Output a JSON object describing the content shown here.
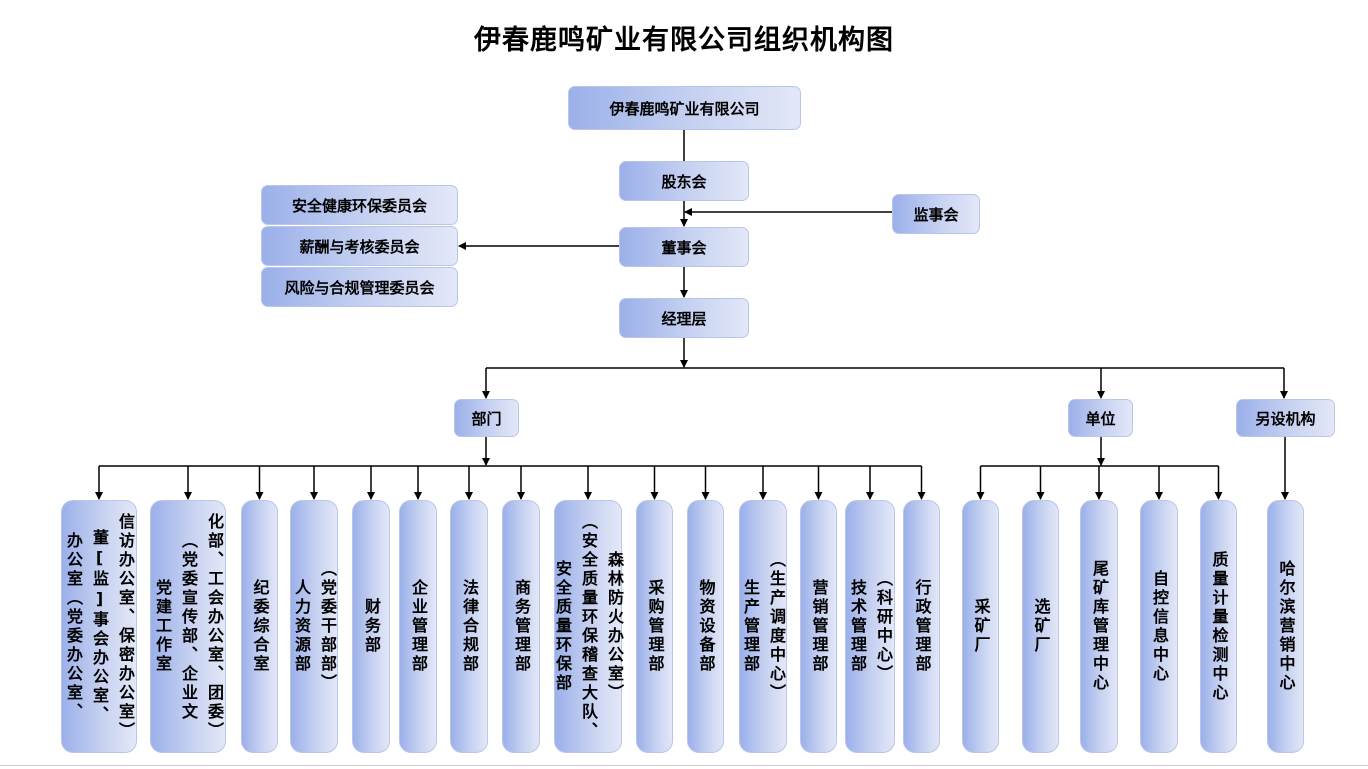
{
  "title": "伊春鹿鸣矿业有限公司组织机构图",
  "company": "伊春鹿鸣矿业有限公司",
  "shareholders": "股东会",
  "supervisors": "监事会",
  "board": "董事会",
  "management": "经理层",
  "committees": [
    "安全健康环保委员会",
    "薪酬与考核委员会",
    "风险与合规管理委员会"
  ],
  "groups": {
    "departments": "部门",
    "units": "单位",
    "other": "另设机构"
  },
  "departments": [
    {
      "columns": [
        "办公室（党委办公室、",
        "董[监]事会办公室、",
        "信访办公室、保密办公室）"
      ]
    },
    {
      "columns": [
        "党建工作室",
        "（党委宣传部、企业文",
        "化部、工会办公室、团委）"
      ]
    },
    {
      "columns": [
        "纪委综合室"
      ]
    },
    {
      "columns": [
        "人力资源部",
        "（党委干部部）"
      ]
    },
    {
      "columns": [
        "财务部"
      ]
    },
    {
      "columns": [
        "企业管理部"
      ]
    },
    {
      "columns": [
        "法律合规部"
      ]
    },
    {
      "columns": [
        "商务管理部"
      ]
    },
    {
      "columns": [
        "安全质量环保部",
        "（安全质量环保稽查大队、",
        "森林防火办公室）"
      ]
    },
    {
      "columns": [
        "采购管理部"
      ]
    },
    {
      "columns": [
        "物资设备部"
      ]
    },
    {
      "columns": [
        "生产管理部",
        "（生产调度中心）"
      ]
    },
    {
      "columns": [
        "营销管理部"
      ]
    },
    {
      "columns": [
        "技术管理部",
        "（科研中心）"
      ]
    },
    {
      "columns": [
        "行政管理部"
      ]
    }
  ],
  "units": [
    {
      "columns": [
        "采矿厂"
      ]
    },
    {
      "columns": [
        "选矿厂"
      ]
    },
    {
      "columns": [
        "尾矿库管理中心"
      ]
    },
    {
      "columns": [
        "自控信息中心"
      ]
    },
    {
      "columns": [
        "质量计量检测中心"
      ]
    }
  ],
  "other": [
    {
      "columns": [
        "哈尔滨营销中心"
      ]
    }
  ],
  "colors": {
    "box_start": "#9bb0ea",
    "box_end": "#e3e8f8",
    "line": "#000000"
  }
}
